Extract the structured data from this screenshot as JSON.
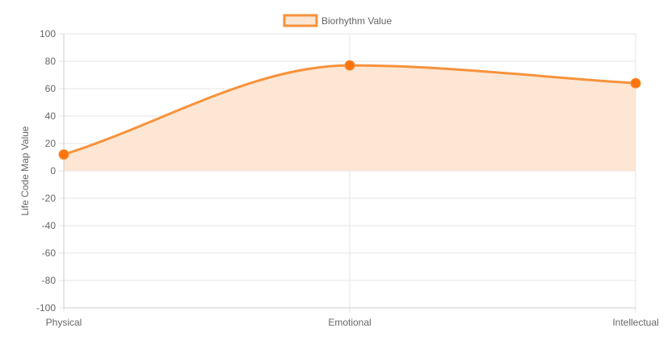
{
  "chart_data": {
    "type": "area",
    "categories": [
      "Physical",
      "Emotional",
      "Intellectual"
    ],
    "series": [
      {
        "name": "Biorhythm Value",
        "values": [
          12,
          77,
          64
        ]
      }
    ],
    "title": "",
    "xlabel": "",
    "ylabel": "Life Code Map Value",
    "ylim": [
      -100,
      100
    ],
    "yticks": [
      100,
      80,
      60,
      40,
      20,
      0,
      -20,
      -40,
      -60,
      -80,
      -100
    ],
    "grid": true,
    "legend": "top-center",
    "colors": {
      "line": "#f7923c",
      "fill": "#fde6d3",
      "point": "#fb740e",
      "grid": "#e6e6e6",
      "axis": "#cccccc",
      "text": "#666666"
    }
  }
}
